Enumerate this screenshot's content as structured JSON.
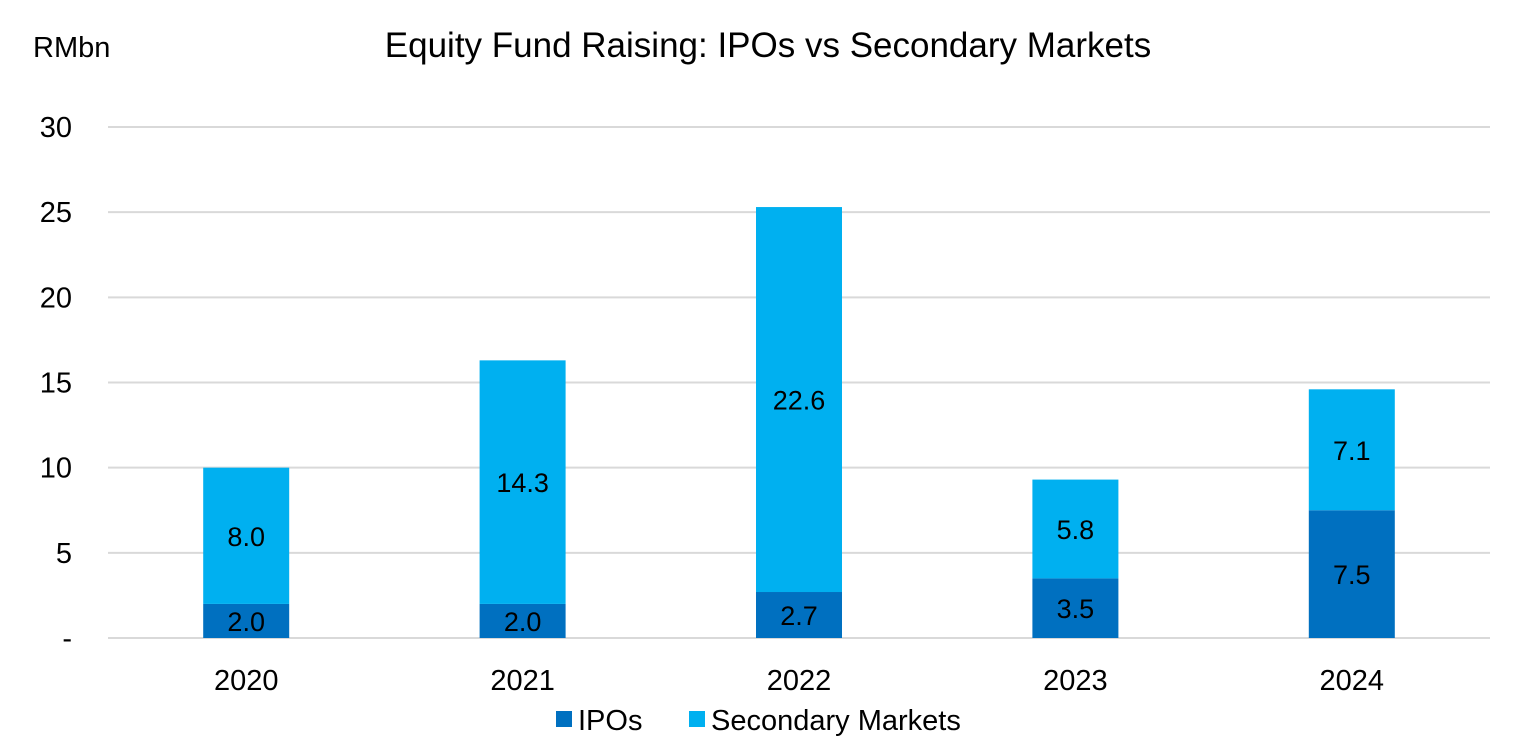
{
  "chart_data": {
    "type": "bar",
    "stacked": true,
    "title": "Equity Fund Raising: IPOs vs Secondary Markets",
    "ylabel": "RMbn",
    "xlabel": "",
    "categories": [
      "2020",
      "2021",
      "2022",
      "2023",
      "2024"
    ],
    "series": [
      {
        "name": "IPOs",
        "color": "#0070C0",
        "values": [
          2.0,
          2.0,
          2.7,
          3.5,
          7.5
        ]
      },
      {
        "name": "Secondary Markets",
        "color": "#00B0F0",
        "values": [
          8.0,
          14.3,
          22.6,
          5.8,
          7.1
        ]
      }
    ],
    "ylim": [
      0,
      30
    ],
    "yticks": [
      0,
      5,
      10,
      15,
      20,
      25,
      30
    ],
    "ytick_labels": [
      "-",
      "5",
      "10",
      "15",
      "20",
      "25",
      "30"
    ],
    "grid": true,
    "legend": "bottom",
    "gridline_color": "#D9D9D9"
  }
}
